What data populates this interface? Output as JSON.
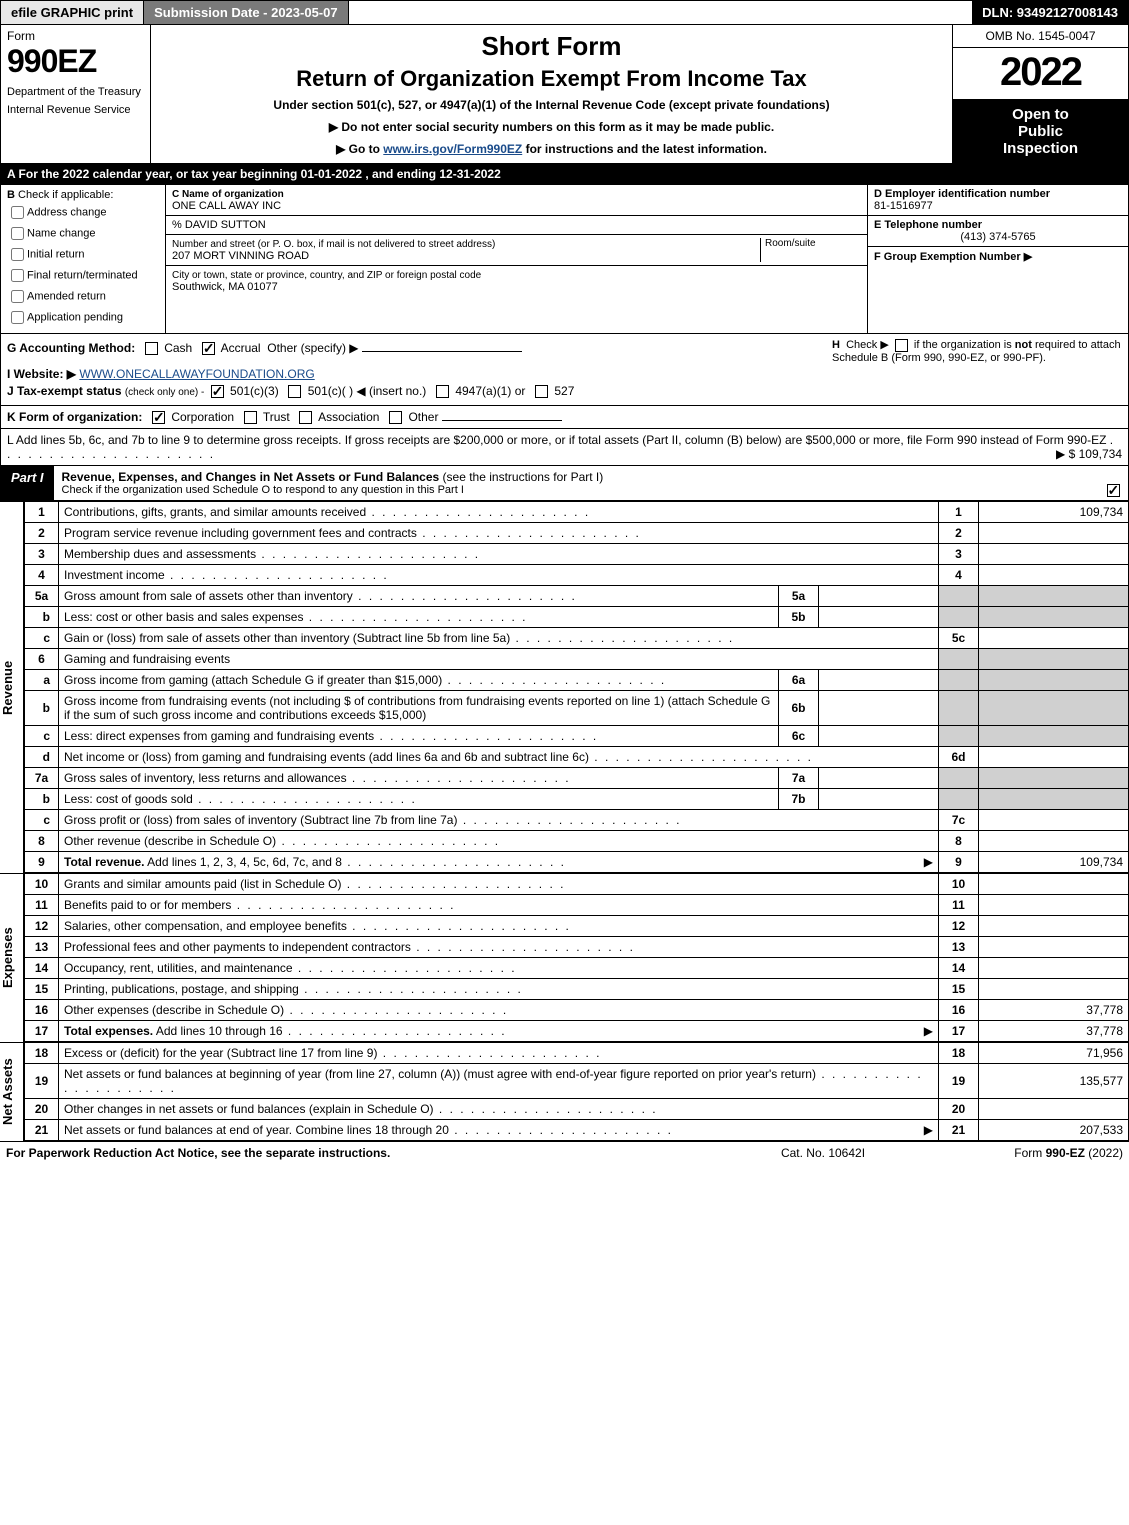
{
  "topbar": {
    "efile": "efile GRAPHIC print",
    "submission": "Submission Date - 2023-05-07",
    "dln": "DLN: 93492127008143"
  },
  "header": {
    "form_word": "Form",
    "form_num": "990EZ",
    "dept1": "Department of the Treasury",
    "dept2": "Internal Revenue Service",
    "short": "Short Form",
    "return": "Return of Organization Exempt From Income Tax",
    "under": "Under section 501(c), 527, or 4947(a)(1) of the Internal Revenue Code (except private foundations)",
    "instr1_pre": "▶ Do not enter social security numbers on this form as it may be made public.",
    "instr2_pre": "▶ Go to ",
    "instr2_link": "www.irs.gov/Form990EZ",
    "instr2_post": " for instructions and the latest information.",
    "omb": "OMB No. 1545-0047",
    "year": "2022",
    "inspect1": "Open to",
    "inspect2": "Public",
    "inspect3": "Inspection"
  },
  "sectionA": "A  For the 2022 calendar year, or tax year beginning 01-01-2022 , and ending 12-31-2022",
  "boxB": {
    "label": "B",
    "check_if": "Check if applicable:",
    "opts": [
      "Address change",
      "Name change",
      "Initial return",
      "Final return/terminated",
      "Amended return",
      "Application pending"
    ]
  },
  "boxC": {
    "name_lbl": "C Name of organization",
    "name": "ONE CALL AWAY INC",
    "pct": "% DAVID SUTTON",
    "street_lbl": "Number and street (or P. O. box, if mail is not delivered to street address)",
    "room_lbl": "Room/suite",
    "street": "207 MORT VINNING ROAD",
    "city_lbl": "City or town, state or province, country, and ZIP or foreign postal code",
    "city": "Southwick, MA  01077"
  },
  "boxD": {
    "ein_lbl": "D Employer identification number",
    "ein": "81-1516977",
    "tel_lbl": "E Telephone number",
    "tel": "(413) 374-5765",
    "grp_lbl": "F Group Exemption Number  ▶"
  },
  "g": {
    "label": "G Accounting Method:",
    "cash": "Cash",
    "accrual": "Accrual",
    "other": "Other (specify) ▶"
  },
  "h": {
    "label": "H",
    "text1": "Check ▶",
    "text2": "if the organization is ",
    "not": "not",
    "text3": " required to attach Schedule B (Form 990, 990-EZ, or 990-PF)."
  },
  "i": {
    "label": "I Website: ▶",
    "url": "WWW.ONECALLAWAYFOUNDATION.ORG"
  },
  "j": {
    "label": "J Tax-exempt status",
    "small": "(check only one) -",
    "o1": "501(c)(3)",
    "o2": "501(c)(   ) ◀ (insert no.)",
    "o3": "4947(a)(1) or",
    "o4": "527"
  },
  "k": {
    "label": "K Form of organization:",
    "o1": "Corporation",
    "o2": "Trust",
    "o3": "Association",
    "o4": "Other"
  },
  "l": {
    "text": "L Add lines 5b, 6c, and 7b to line 9 to determine gross receipts. If gross receipts are $200,000 or more, or if total assets (Part II, column (B) below) are $500,000 or more, file Form 990 instead of Form 990-EZ",
    "amount": "▶ $ 109,734"
  },
  "part1": {
    "tab": "Part I",
    "title": "Revenue, Expenses, and Changes in Net Assets or Fund Balances",
    "title_sub": "(see the instructions for Part I)",
    "check_line": "Check if the organization used Schedule O to respond to any question in this Part I"
  },
  "revenue_lines": [
    {
      "n": "1",
      "desc": "Contributions, gifts, grants, and similar amounts received",
      "box": "1",
      "val": "109,734"
    },
    {
      "n": "2",
      "desc": "Program service revenue including government fees and contracts",
      "box": "2",
      "val": ""
    },
    {
      "n": "3",
      "desc": "Membership dues and assessments",
      "box": "3",
      "val": ""
    },
    {
      "n": "4",
      "desc": "Investment income",
      "box": "4",
      "val": ""
    },
    {
      "n": "5a",
      "desc": "Gross amount from sale of assets other than inventory",
      "mbox": "5a",
      "mval": "",
      "shade": true
    },
    {
      "n": "b",
      "desc": "Less: cost or other basis and sales expenses",
      "mbox": "5b",
      "mval": "",
      "shade": true
    },
    {
      "n": "c",
      "desc": "Gain or (loss) from sale of assets other than inventory (Subtract line 5b from line 5a)",
      "box": "5c",
      "val": ""
    },
    {
      "n": "6",
      "desc": "Gaming and fundraising events",
      "noboxes": true,
      "shade": true
    },
    {
      "n": "a",
      "desc": "Gross income from gaming (attach Schedule G if greater than $15,000)",
      "mbox": "6a",
      "mval": "",
      "shade": true
    },
    {
      "n": "b",
      "desc_multi": "Gross income from fundraising events (not including $                           of contributions from fundraising events reported on line 1) (attach Schedule G if the sum of such gross income and contributions exceeds $15,000)",
      "mbox": "6b",
      "mval": "",
      "shade": true
    },
    {
      "n": "c",
      "desc": "Less: direct expenses from gaming and fundraising events",
      "mbox": "6c",
      "mval": "",
      "shade": true
    },
    {
      "n": "d",
      "desc": "Net income or (loss) from gaming and fundraising events (add lines 6a and 6b and subtract line 6c)",
      "box": "6d",
      "val": ""
    },
    {
      "n": "7a",
      "desc": "Gross sales of inventory, less returns and allowances",
      "mbox": "7a",
      "mval": "",
      "shade": true
    },
    {
      "n": "b",
      "desc": "Less: cost of goods sold",
      "mbox": "7b",
      "mval": "",
      "shade": true
    },
    {
      "n": "c",
      "desc": "Gross profit or (loss) from sales of inventory (Subtract line 7b from line 7a)",
      "box": "7c",
      "val": ""
    },
    {
      "n": "8",
      "desc": "Other revenue (describe in Schedule O)",
      "box": "8",
      "val": ""
    },
    {
      "n": "9",
      "desc": "Total revenue. Add lines 1, 2, 3, 4, 5c, 6d, 7c, and 8",
      "box": "9",
      "val": "109,734",
      "bold": true,
      "arrow": true
    }
  ],
  "revenue_label": "Revenue",
  "expense_lines": [
    {
      "n": "10",
      "desc": "Grants and similar amounts paid (list in Schedule O)",
      "box": "10",
      "val": ""
    },
    {
      "n": "11",
      "desc": "Benefits paid to or for members",
      "box": "11",
      "val": ""
    },
    {
      "n": "12",
      "desc": "Salaries, other compensation, and employee benefits",
      "box": "12",
      "val": ""
    },
    {
      "n": "13",
      "desc": "Professional fees and other payments to independent contractors",
      "box": "13",
      "val": ""
    },
    {
      "n": "14",
      "desc": "Occupancy, rent, utilities, and maintenance",
      "box": "14",
      "val": ""
    },
    {
      "n": "15",
      "desc": "Printing, publications, postage, and shipping",
      "box": "15",
      "val": ""
    },
    {
      "n": "16",
      "desc": "Other expenses (describe in Schedule O)",
      "box": "16",
      "val": "37,778"
    },
    {
      "n": "17",
      "desc": "Total expenses. Add lines 10 through 16",
      "box": "17",
      "val": "37,778",
      "bold": true,
      "arrow": true
    }
  ],
  "expense_label": "Expenses",
  "netassets_lines": [
    {
      "n": "18",
      "desc": "Excess or (deficit) for the year (Subtract line 17 from line 9)",
      "box": "18",
      "val": "71,956"
    },
    {
      "n": "19",
      "desc": "Net assets or fund balances at beginning of year (from line 27, column (A)) (must agree with end-of-year figure reported on prior year's return)",
      "box": "19",
      "val": "135,577"
    },
    {
      "n": "20",
      "desc": "Other changes in net assets or fund balances (explain in Schedule O)",
      "box": "20",
      "val": ""
    },
    {
      "n": "21",
      "desc": "Net assets or fund balances at end of year. Combine lines 18 through 20",
      "box": "21",
      "val": "207,533",
      "arrow": true
    }
  ],
  "netassets_label": "Net Assets",
  "footer": {
    "left": "For Paperwork Reduction Act Notice, see the separate instructions.",
    "center": "Cat. No. 10642I",
    "right_pre": "Form ",
    "right_bold": "990-EZ",
    "right_post": " (2022)"
  }
}
